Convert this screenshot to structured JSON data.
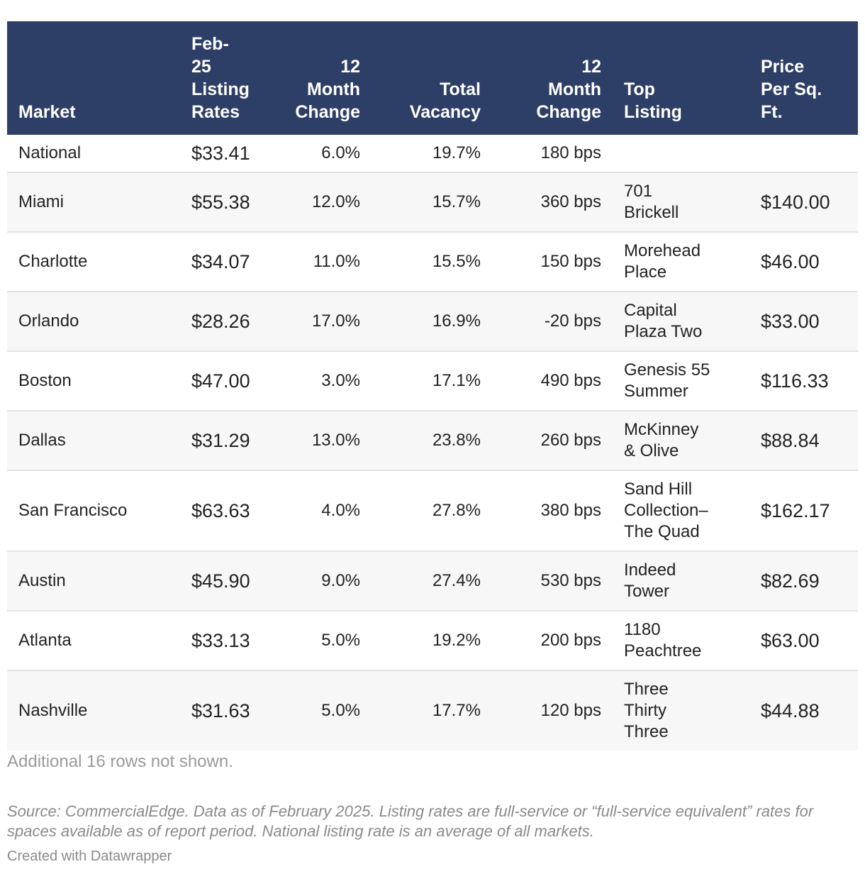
{
  "chart_data": {
    "type": "table",
    "columns": [
      "Market",
      "Feb-25 Listing Rates",
      "12 Month Change",
      "Total Vacancy",
      "12 Month Change",
      "Top Listing",
      "Price Per Sq. Ft."
    ],
    "header_lines": [
      [
        "Market"
      ],
      [
        "Feb-",
        "25",
        "Listing",
        "Rates"
      ],
      [
        "12",
        "Month",
        "Change"
      ],
      [
        "Total",
        "Vacancy"
      ],
      [
        "12",
        "Month",
        "Change"
      ],
      [
        "Top",
        "Listing"
      ],
      [
        "Price",
        "Per Sq.",
        "Ft."
      ]
    ],
    "rows": [
      {
        "market": "National",
        "rate": "$33.41",
        "rate_change": "6.0%",
        "vacancy": "19.7%",
        "vacancy_change": "180 bps",
        "top_listing": [],
        "price": ""
      },
      {
        "market": "Miami",
        "rate": "$55.38",
        "rate_change": "12.0%",
        "vacancy": "15.7%",
        "vacancy_change": "360 bps",
        "top_listing": [
          "701",
          "Brickell"
        ],
        "price": "$140.00"
      },
      {
        "market": "Charlotte",
        "rate": "$34.07",
        "rate_change": "11.0%",
        "vacancy": "15.5%",
        "vacancy_change": "150 bps",
        "top_listing": [
          "Morehead",
          "Place"
        ],
        "price": "$46.00"
      },
      {
        "market": "Orlando",
        "rate": "$28.26",
        "rate_change": "17.0%",
        "vacancy": "16.9%",
        "vacancy_change": "-20 bps",
        "top_listing": [
          "Capital",
          "Plaza Two"
        ],
        "price": "$33.00"
      },
      {
        "market": "Boston",
        "rate": "$47.00",
        "rate_change": "3.0%",
        "vacancy": "17.1%",
        "vacancy_change": "490 bps",
        "top_listing": [
          "Genesis 55",
          "Summer"
        ],
        "price": "$116.33"
      },
      {
        "market": "Dallas",
        "rate": "$31.29",
        "rate_change": "13.0%",
        "vacancy": "23.8%",
        "vacancy_change": "260 bps",
        "top_listing": [
          "McKinney",
          "& Olive"
        ],
        "price": "$88.84"
      },
      {
        "market": "San Francisco",
        "rate": "$63.63",
        "rate_change": "4.0%",
        "vacancy": "27.8%",
        "vacancy_change": "380 bps",
        "top_listing": [
          "Sand Hill",
          "Collection–",
          "The Quad"
        ],
        "price": "$162.17"
      },
      {
        "market": "Austin",
        "rate": "$45.90",
        "rate_change": "9.0%",
        "vacancy": "27.4%",
        "vacancy_change": "530 bps",
        "top_listing": [
          "Indeed",
          "Tower"
        ],
        "price": "$82.69"
      },
      {
        "market": "Atlanta",
        "rate": "$33.13",
        "rate_change": "5.0%",
        "vacancy": "19.2%",
        "vacancy_change": "200 bps",
        "top_listing": [
          "1180",
          "Peachtree"
        ],
        "price": "$63.00"
      },
      {
        "market": "Nashville",
        "rate": "$31.63",
        "rate_change": "5.0%",
        "vacancy": "17.7%",
        "vacancy_change": "120 bps",
        "top_listing": [
          "Three",
          "Thirty",
          "Three"
        ],
        "price": "$44.88"
      }
    ]
  },
  "notes": "Additional 16 rows not shown.",
  "source_text": "Source: CommercialEdge. Data as of February 2025. Listing rates are full-service or “full-service equivalent” rates for spaces available as of report period. National listing rate is an average of all markets.",
  "credit": "Created with Datawrapper",
  "colors": {
    "header_bg": "#2d3f66",
    "header_text": "#ffffff",
    "zebra": "#f7f7f7",
    "row_border": "#e3e3e3",
    "muted_text": "#9a9a9a"
  }
}
